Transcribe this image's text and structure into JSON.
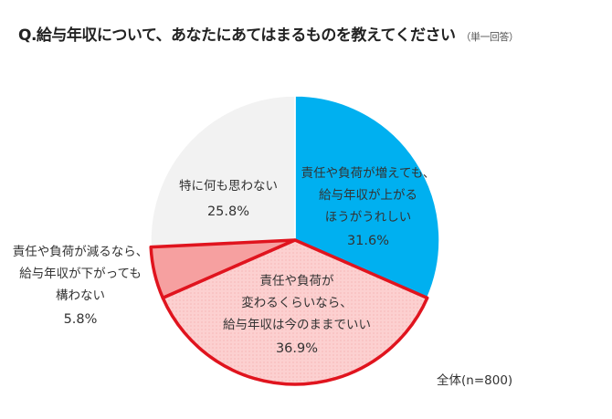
{
  "title": "Q.給与年収について、あなたにあてはまるものを教えてください",
  "subtitle": "（単一回答）",
  "note": "全体(n=800)",
  "chart_data": {
    "type": "pie",
    "start": "top",
    "direction": "clockwise",
    "slices": [
      {
        "label_lines": [
          "責任や負荷が増えても、",
          "給与年収が上がる",
          "ほうがうれしい"
        ],
        "value": 31.6,
        "value_label": "31.6%",
        "color": "#00b0f0",
        "border": "#ffffff"
      },
      {
        "label_lines": [
          "責任や負荷が",
          "変わるくらいなら、",
          "給与年収は今のままでいい"
        ],
        "value": 36.9,
        "value_label": "36.9%",
        "color": "#fcd0d0",
        "border": "#e0141e",
        "pattern": "dotted"
      },
      {
        "label_lines": [
          "責任や負荷が減るなら、",
          "給与年収が下がっても",
          "構わない"
        ],
        "value": 5.8,
        "value_label": "5.8%",
        "color": "#f6a0a0",
        "border": "#e0141e"
      },
      {
        "label_lines": [
          "特に何も思わない"
        ],
        "value": 25.8,
        "value_label": "25.8%",
        "color": "#f2f2f2",
        "border": "#ffffff"
      }
    ]
  }
}
